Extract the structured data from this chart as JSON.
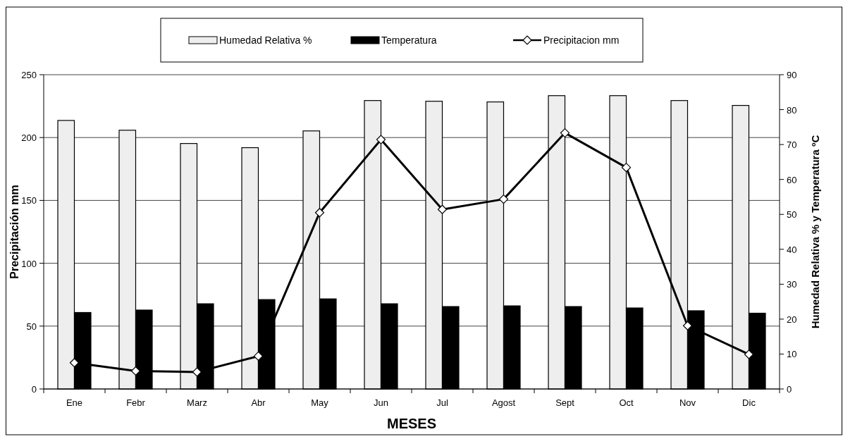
{
  "chart_data": {
    "type": "bar",
    "xlabel": "MESES",
    "ylabel": "Precipitación mm",
    "y2label": "Humedad Relativa % y Temperatura ºC",
    "categories": [
      "Ene",
      "Febr",
      "Marz",
      "Abr",
      "May",
      "Jun",
      "Jul",
      "Agost",
      "Sept",
      "Oct",
      "Nov",
      "Dic"
    ],
    "series": [
      {
        "name": "Humedad Relativa %",
        "axis": "y2",
        "color": "#eeeeee",
        "values": [
          76.9,
          74.1,
          70.3,
          69.1,
          73.9,
          82.6,
          82.4,
          82.2,
          84,
          84,
          82.6,
          81.2
        ]
      },
      {
        "name": "Temperatura",
        "axis": "y2",
        "color": "#000000",
        "values": [
          21.9,
          22.6,
          24.4,
          25.6,
          25.8,
          24.4,
          23.6,
          23.8,
          23.6,
          23.2,
          22.4,
          21.7
        ]
      },
      {
        "name": "Precipitacion mm",
        "type": "line",
        "axis": "y",
        "color": "#000000",
        "marker": "diamond",
        "values": [
          20.9,
          14.3,
          13.5,
          26.1,
          140.3,
          198.4,
          142.8,
          151,
          203.7,
          176.2,
          50.3,
          27.5
        ]
      }
    ],
    "ylim": [
      0,
      250
    ],
    "yticks": [
      0,
      50,
      100,
      150,
      200,
      250
    ],
    "y2lim": [
      0,
      90
    ],
    "y2ticks": [
      0,
      10,
      20,
      30,
      40,
      50,
      60,
      70,
      80,
      90
    ],
    "grid": "y",
    "legend": "top"
  }
}
